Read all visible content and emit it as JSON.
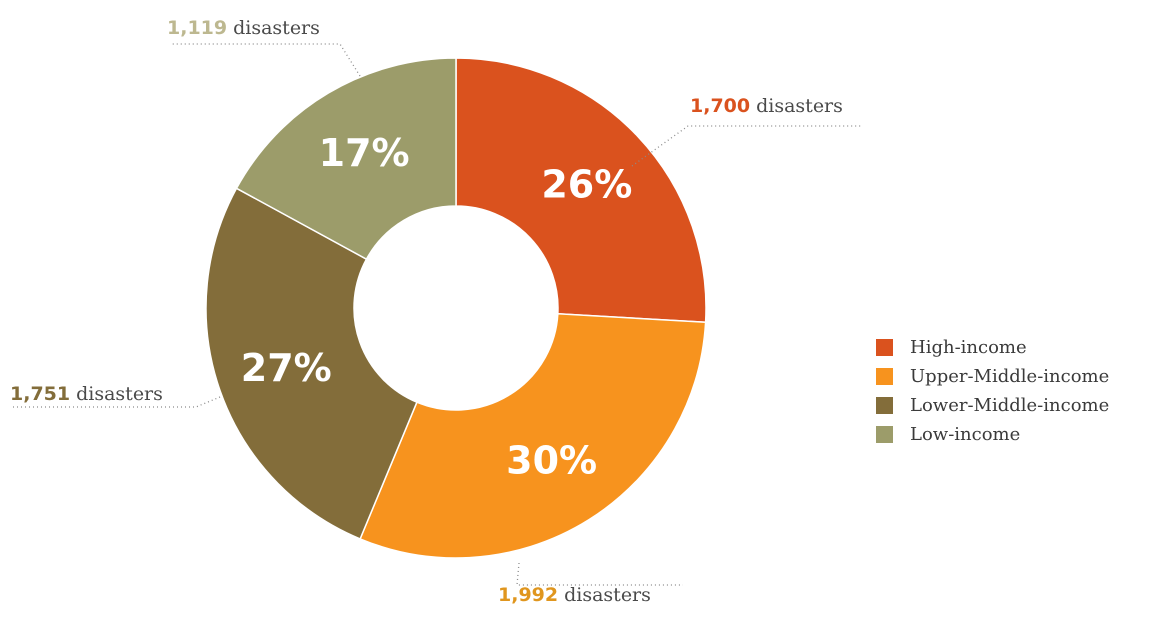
{
  "chart_data": {
    "type": "pie",
    "variant": "donut",
    "title": "",
    "slices": [
      {
        "name": "High-income",
        "value": 1700,
        "percent_label": "26%",
        "count_label": "1,700",
        "unit_label": "disasters",
        "color": "#DA521E"
      },
      {
        "name": "Upper-Middle-income",
        "value": 1992,
        "percent_label": "30%",
        "count_label": "1,992",
        "unit_label": "disasters",
        "color": "#F7931E"
      },
      {
        "name": "Lower-Middle-income",
        "value": 1751,
        "percent_label": "27%",
        "count_label": "1,751",
        "unit_label": "disasters",
        "color": "#836D3A"
      },
      {
        "name": "Low-income",
        "value": 1119,
        "percent_label": "17%",
        "count_label": "1,119",
        "unit_label": "disasters",
        "color": "#9C9C6A"
      }
    ],
    "callout_colors": [
      "#DA521E",
      "#E0961E",
      "#836D3A",
      "#BDB890"
    ],
    "legend_position": "right"
  }
}
